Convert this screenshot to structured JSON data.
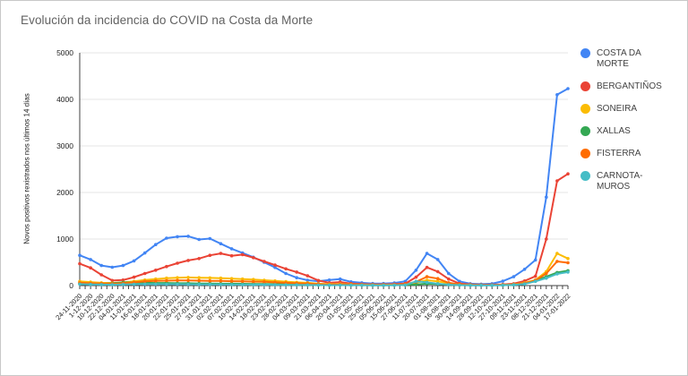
{
  "chart_data": {
    "type": "line",
    "title": "Evolución da incidencia do COVID na Costa da Morte",
    "xlabel": "",
    "ylabel": "Novos positivos rexistrados nos últimos 14 días",
    "ylim": [
      0,
      5000
    ],
    "yticks": [
      0,
      1000,
      2000,
      3000,
      4000,
      5000
    ],
    "grid": true,
    "legend_position": "right",
    "point_markers": true,
    "categories": [
      "24-11-2020",
      "1-12-2020",
      "10-12-2020",
      "22-12-2020",
      "04-01-2021",
      "11-01-2021",
      "16-01-2021",
      "18-01-2021",
      "20-01-2021",
      "22-01-2021",
      "25-01-2021",
      "27-01-2021",
      "31-01-2021",
      "02-02-2021",
      "07-02-2021",
      "10-02-2021",
      "14-02-2021",
      "18-02-2021",
      "23-02-2021",
      "28-02-2021",
      "04-03-2021",
      "09-03-2021",
      "21-03-2021",
      "06-04-2021",
      "20-04-2021",
      "01-05-2021",
      "11-05-2021",
      "25-05-2021",
      "05-06-2021",
      "15-06-2021",
      "27-06-2021",
      "11-07-2021",
      "20-07-2021",
      "01-08-2021",
      "16-08-2021",
      "30-08-2021",
      "14-09-2021",
      "28-09-2021",
      "12-10-2021",
      "27-10-2021",
      "09-11-2021",
      "23-11-2021",
      "08-12-2021",
      "21-12-2021",
      "04-01-2022",
      "17-01-2022"
    ],
    "series": [
      {
        "name": "COSTA DA MORTE",
        "color": "#4285F4",
        "values": [
          650,
          560,
          430,
          395,
          430,
          530,
          700,
          880,
          1020,
          1050,
          1060,
          990,
          1010,
          900,
          790,
          700,
          610,
          500,
          390,
          260,
          170,
          115,
          95,
          120,
          140,
          80,
          60,
          45,
          45,
          55,
          90,
          330,
          690,
          560,
          260,
          90,
          40,
          30,
          40,
          95,
          190,
          350,
          550,
          1900,
          4100,
          4230
        ]
      },
      {
        "name": "BERGANTIÑOS",
        "color": "#EA4335",
        "values": [
          470,
          380,
          230,
          110,
          120,
          180,
          260,
          330,
          410,
          480,
          540,
          580,
          650,
          690,
          640,
          665,
          600,
          520,
          440,
          360,
          290,
          210,
          110,
          60,
          75,
          45,
          30,
          25,
          25,
          30,
          45,
          180,
          390,
          300,
          140,
          45,
          25,
          20,
          20,
          25,
          40,
          100,
          200,
          1000,
          2250,
          2400
        ]
      },
      {
        "name": "SONEIRA",
        "color": "#FBBC04",
        "values": [
          90,
          75,
          60,
          55,
          70,
          90,
          120,
          140,
          160,
          170,
          175,
          170,
          165,
          160,
          150,
          140,
          130,
          115,
          100,
          85,
          70,
          60,
          40,
          30,
          35,
          25,
          20,
          15,
          15,
          20,
          25,
          60,
          115,
          90,
          50,
          25,
          15,
          10,
          10,
          15,
          25,
          60,
          120,
          300,
          690,
          580
        ]
      },
      {
        "name": "XALLAS",
        "color": "#34A853",
        "values": [
          45,
          40,
          35,
          50,
          70,
          65,
          60,
          55,
          55,
          50,
          50,
          45,
          45,
          40,
          40,
          38,
          35,
          32,
          30,
          28,
          25,
          22,
          15,
          12,
          15,
          12,
          10,
          8,
          8,
          10,
          15,
          25,
          40,
          35,
          20,
          12,
          8,
          8,
          8,
          10,
          18,
          45,
          110,
          190,
          280,
          320
        ]
      },
      {
        "name": "FISTERRA",
        "color": "#FF6D01",
        "values": [
          60,
          50,
          45,
          40,
          50,
          70,
          90,
          100,
          105,
          110,
          110,
          105,
          100,
          100,
          95,
          90,
          85,
          80,
          70,
          60,
          50,
          45,
          30,
          20,
          25,
          20,
          15,
          12,
          12,
          15,
          30,
          80,
          190,
          150,
          60,
          25,
          12,
          10,
          10,
          12,
          20,
          50,
          110,
          260,
          520,
          490
        ]
      },
      {
        "name": "CARNOTA-MUROS",
        "color": "#46BDC6",
        "values": [
          30,
          25,
          22,
          20,
          25,
          28,
          30,
          30,
          28,
          28,
          26,
          25,
          25,
          24,
          22,
          22,
          20,
          20,
          18,
          16,
          15,
          14,
          10,
          8,
          10,
          8,
          7,
          6,
          6,
          8,
          12,
          90,
          70,
          40,
          20,
          10,
          6,
          6,
          6,
          8,
          15,
          35,
          90,
          160,
          250,
          290
        ]
      }
    ],
    "axis_colors": {
      "grid": "#e4e4e4",
      "axis_line": "#424242",
      "tick_label": "#222222"
    }
  }
}
